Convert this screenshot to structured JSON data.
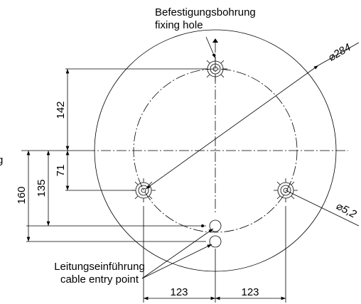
{
  "callouts": {
    "fixing_hole_de": "Befestigungsbohrung",
    "fixing_hole_en": "fixing hole",
    "cable_entry_de": "Leitungseinführung",
    "cable_entry_en": "cable entry point",
    "cut_text": "g"
  },
  "dimensions": {
    "diameter_outer": "⌀284",
    "hole_diameter": "⌀5,2",
    "top_hole": "142",
    "side_holes": "71",
    "entry_upper": "135",
    "entry_lower": "160",
    "left_spacing": "123",
    "right_spacing": "123"
  }
}
